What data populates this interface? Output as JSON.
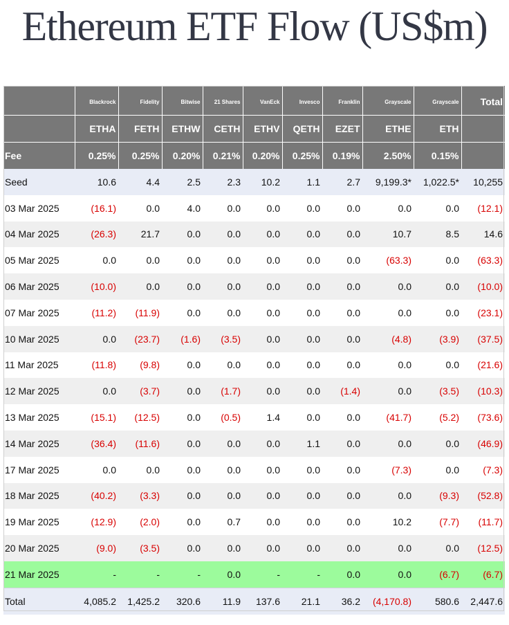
{
  "title": "Ethereum ETF Flow (US$m)",
  "columns": [
    {
      "issuer": "Blackrock",
      "ticker": "ETHA",
      "fee": "0.25%"
    },
    {
      "issuer": "Fidelity",
      "ticker": "FETH",
      "fee": "0.25%"
    },
    {
      "issuer": "Bitwise",
      "ticker": "ETHW",
      "fee": "0.20%"
    },
    {
      "issuer": "21 Shares",
      "ticker": "CETH",
      "fee": "0.21%"
    },
    {
      "issuer": "VanEck",
      "ticker": "ETHV",
      "fee": "0.20%"
    },
    {
      "issuer": "Invesco",
      "ticker": "QETH",
      "fee": "0.25%"
    },
    {
      "issuer": "Franklin",
      "ticker": "EZET",
      "fee": "0.19%"
    },
    {
      "issuer": "Grayscale",
      "ticker": "ETHE",
      "fee": "2.50%"
    },
    {
      "issuer": "Grayscale",
      "ticker": "ETH",
      "fee": "0.15%"
    }
  ],
  "total_header": "Total",
  "fee_label": "Fee",
  "rows": [
    {
      "label": "Seed",
      "style": "seed",
      "values": [
        "10.6",
        "4.4",
        "2.5",
        "2.3",
        "10.2",
        "1.1",
        "2.7",
        "9,199.3*",
        "1,022.5*",
        "10,255"
      ]
    },
    {
      "label": "03 Mar 2025",
      "style": "odd",
      "values": [
        "(16.1)",
        "0.0",
        "4.0",
        "0.0",
        "0.0",
        "0.0",
        "0.0",
        "0.0",
        "0.0",
        "(12.1)"
      ]
    },
    {
      "label": "04 Mar 2025",
      "style": "even",
      "values": [
        "(26.3)",
        "21.7",
        "0.0",
        "0.0",
        "0.0",
        "0.0",
        "0.0",
        "10.7",
        "8.5",
        "14.6"
      ]
    },
    {
      "label": "05 Mar 2025",
      "style": "odd",
      "values": [
        "0.0",
        "0.0",
        "0.0",
        "0.0",
        "0.0",
        "0.0",
        "0.0",
        "(63.3)",
        "0.0",
        "(63.3)"
      ]
    },
    {
      "label": "06 Mar 2025",
      "style": "even",
      "values": [
        "(10.0)",
        "0.0",
        "0.0",
        "0.0",
        "0.0",
        "0.0",
        "0.0",
        "0.0",
        "0.0",
        "(10.0)"
      ]
    },
    {
      "label": "07 Mar 2025",
      "style": "odd",
      "values": [
        "(11.2)",
        "(11.9)",
        "0.0",
        "0.0",
        "0.0",
        "0.0",
        "0.0",
        "0.0",
        "0.0",
        "(23.1)"
      ]
    },
    {
      "label": "10 Mar 2025",
      "style": "even",
      "values": [
        "0.0",
        "(23.7)",
        "(1.6)",
        "(3.5)",
        "0.0",
        "0.0",
        "0.0",
        "(4.8)",
        "(3.9)",
        "(37.5)"
      ]
    },
    {
      "label": "11 Mar 2025",
      "style": "odd",
      "values": [
        "(11.8)",
        "(9.8)",
        "0.0",
        "0.0",
        "0.0",
        "0.0",
        "0.0",
        "0.0",
        "0.0",
        "(21.6)"
      ]
    },
    {
      "label": "12 Mar 2025",
      "style": "even",
      "values": [
        "0.0",
        "(3.7)",
        "0.0",
        "(1.7)",
        "0.0",
        "0.0",
        "(1.4)",
        "0.0",
        "(3.5)",
        "(10.3)"
      ]
    },
    {
      "label": "13 Mar 2025",
      "style": "odd",
      "values": [
        "(15.1)",
        "(12.5)",
        "0.0",
        "(0.5)",
        "1.4",
        "0.0",
        "0.0",
        "(41.7)",
        "(5.2)",
        "(73.6)"
      ]
    },
    {
      "label": "14 Mar 2025",
      "style": "even",
      "values": [
        "(36.4)",
        "(11.6)",
        "0.0",
        "0.0",
        "0.0",
        "1.1",
        "0.0",
        "0.0",
        "0.0",
        "(46.9)"
      ]
    },
    {
      "label": "17 Mar 2025",
      "style": "odd",
      "values": [
        "0.0",
        "0.0",
        "0.0",
        "0.0",
        "0.0",
        "0.0",
        "0.0",
        "(7.3)",
        "0.0",
        "(7.3)"
      ]
    },
    {
      "label": "18 Mar 2025",
      "style": "even",
      "values": [
        "(40.2)",
        "(3.3)",
        "0.0",
        "0.0",
        "0.0",
        "0.0",
        "0.0",
        "0.0",
        "(9.3)",
        "(52.8)"
      ]
    },
    {
      "label": "19 Mar 2025",
      "style": "odd",
      "values": [
        "(12.9)",
        "(2.0)",
        "0.0",
        "0.7",
        "0.0",
        "0.0",
        "0.0",
        "10.2",
        "(7.7)",
        "(11.7)"
      ]
    },
    {
      "label": "20 Mar 2025",
      "style": "even",
      "values": [
        "(9.0)",
        "(3.5)",
        "0.0",
        "0.0",
        "0.0",
        "0.0",
        "0.0",
        "0.0",
        "0.0",
        "(12.5)"
      ]
    },
    {
      "label": "21 Mar 2025",
      "style": "hl",
      "values": [
        "-",
        "-",
        "-",
        "0.0",
        "-",
        "-",
        "0.0",
        "0.0",
        "(6.7)",
        "(6.7)"
      ]
    },
    {
      "label": "Total",
      "style": "tot",
      "values": [
        "4,085.2",
        "1,425.2",
        "320.6",
        "11.9",
        "137.6",
        "21.1",
        "36.2",
        "(4,170.8)",
        "580.6",
        "2,447.6"
      ]
    }
  ],
  "colors": {
    "header_bg": "#787878",
    "negative": "#d80000",
    "seed_total_bg": "#e8ecf6",
    "stripe_bg": "#efefef",
    "highlight_bg": "#9cfb9c",
    "title": "#333745"
  }
}
